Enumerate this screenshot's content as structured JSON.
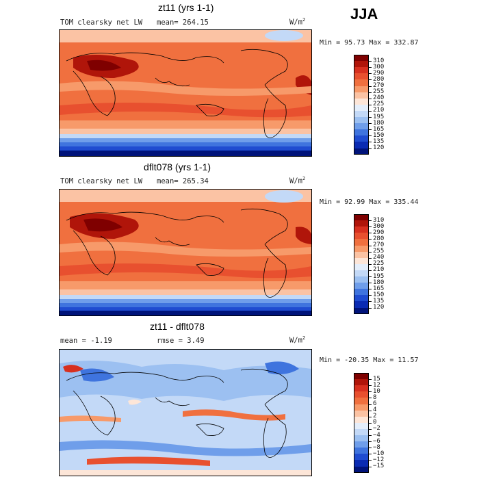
{
  "season": "JJA",
  "panels": [
    {
      "title": "zt11 (yrs 1-1)",
      "subtitle_left": "TOM clearsky net LW",
      "subtitle_mid": "mean= 264.15",
      "units": "W/m",
      "units_sup": "2",
      "minmax": "Min =  95.73 Max = 332.87"
    },
    {
      "title": "dflt078 (yrs 1-1)",
      "subtitle_left": "TOM clearsky net LW",
      "subtitle_mid": "mean= 265.34",
      "units": "W/m",
      "units_sup": "2",
      "minmax": "Min =  92.99 Max = 335.44"
    },
    {
      "title": "zt11 - dflt078",
      "subtitle_left": "mean =   -1.19",
      "subtitle_mid": "rmse =    3.49",
      "units": "W/m",
      "units_sup": "2",
      "minmax": "Min = -20.35 Max =  11.57"
    }
  ],
  "colorbars": {
    "absolute": {
      "labels": [
        "310",
        "300",
        "290",
        "280",
        "270",
        "255",
        "240",
        "225",
        "210",
        "195",
        "180",
        "165",
        "150",
        "135",
        "120"
      ],
      "colors": [
        "#7f0000",
        "#b0150a",
        "#d7301f",
        "#e8502f",
        "#f0703f",
        "#f79a6a",
        "#fbc3a4",
        "#fde6d8",
        "#e4eefb",
        "#c3d9f7",
        "#9cc0f1",
        "#6f9eea",
        "#3f74de",
        "#1f4cd0",
        "#0a2bb3",
        "#00137a"
      ]
    },
    "difference": {
      "labels": [
        "15",
        "12",
        "10",
        "8",
        "6",
        "4",
        "2",
        "0",
        "−2",
        "−4",
        "−6",
        "−8",
        "−10",
        "−12",
        "−15"
      ],
      "colors": [
        "#7f0000",
        "#b0150a",
        "#d7301f",
        "#e8502f",
        "#f0703f",
        "#f79a6a",
        "#fbc3a4",
        "#fde6d8",
        "#e4eefb",
        "#c3d9f7",
        "#9cc0f1",
        "#6f9eea",
        "#3f74de",
        "#1f4cd0",
        "#0a2bb3",
        "#00137a"
      ]
    }
  }
}
